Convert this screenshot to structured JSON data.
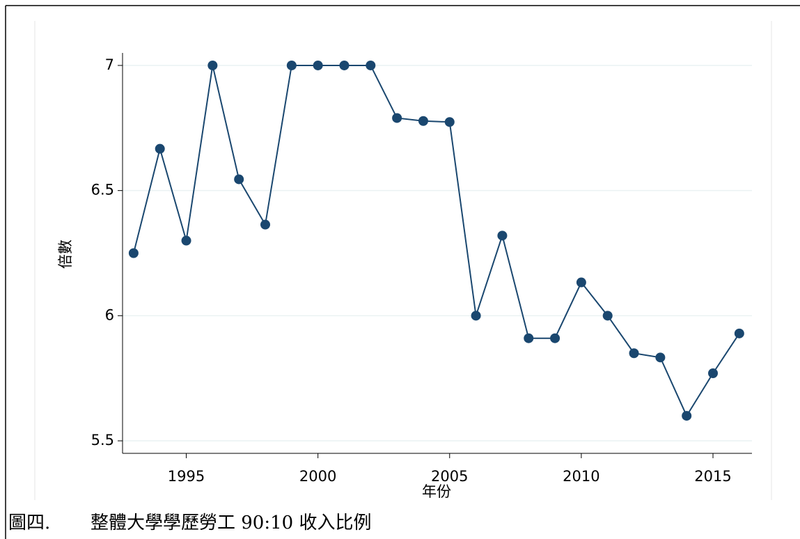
{
  "chart_data": {
    "type": "line",
    "x_label": "年份",
    "y_label": "倍數",
    "x": [
      1993,
      1994,
      1995,
      1996,
      1997,
      1998,
      1999,
      2000,
      2001,
      2002,
      2003,
      2004,
      2005,
      2006,
      2007,
      2008,
      2009,
      2010,
      2011,
      2012,
      2013,
      2014,
      2015,
      2016
    ],
    "series": [
      {
        "color": "#1a476f",
        "values": [
          6.25,
          6.667,
          6.3,
          7.0,
          6.545,
          6.364,
          7.0,
          7.0,
          7.0,
          7.0,
          6.79,
          6.778,
          6.774,
          6.0,
          6.32,
          5.91,
          5.91,
          6.133,
          6.0,
          5.85,
          5.833,
          5.6,
          5.77,
          5.929
        ]
      }
    ],
    "xlim": [
      1992.58,
      2016.48
    ],
    "xticks": [
      1995,
      2000,
      2005,
      2010,
      2015
    ],
    "ylim": [
      5.45,
      7.05
    ],
    "yticks": [
      5.5,
      6,
      6.5,
      7
    ],
    "grid": true,
    "grid_color": "#eaf2f3"
  },
  "caption": {
    "label": "圖四.",
    "text": "整體大學學歷勞工 90:10 收入比例"
  }
}
